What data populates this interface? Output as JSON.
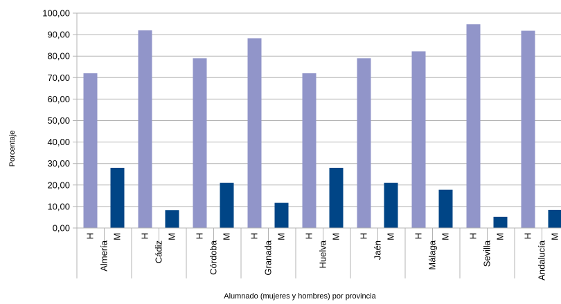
{
  "chart_data": {
    "type": "bar",
    "title": "",
    "xlabel": "Alumnado (mujeres y hombres) por provincia",
    "ylabel": "Porcentaje",
    "ylim": [
      0,
      100
    ],
    "yticks": [
      "0,00",
      "10,00",
      "20,00",
      "30,00",
      "40,00",
      "50,00",
      "60,00",
      "70,00",
      "80,00",
      "90,00",
      "100,00"
    ],
    "grid": true,
    "legend": "none",
    "groups": [
      "Almería",
      "Cádiz",
      "Córdoba",
      "Granada",
      "Huelva",
      "Jaén",
      "Málaga",
      "Sevilla",
      "Andalucía"
    ],
    "subcategories": [
      "H",
      "M"
    ],
    "series": [
      {
        "sub": "H",
        "color": "#9195C9",
        "values": [
          72,
          92,
          79,
          88.3,
          72,
          79,
          82.2,
          94.8,
          91.8
        ]
      },
      {
        "sub": "M",
        "color": "#004586",
        "values": [
          28,
          8.3,
          21,
          11.7,
          28,
          21,
          17.8,
          5.2,
          8.4
        ]
      }
    ]
  }
}
